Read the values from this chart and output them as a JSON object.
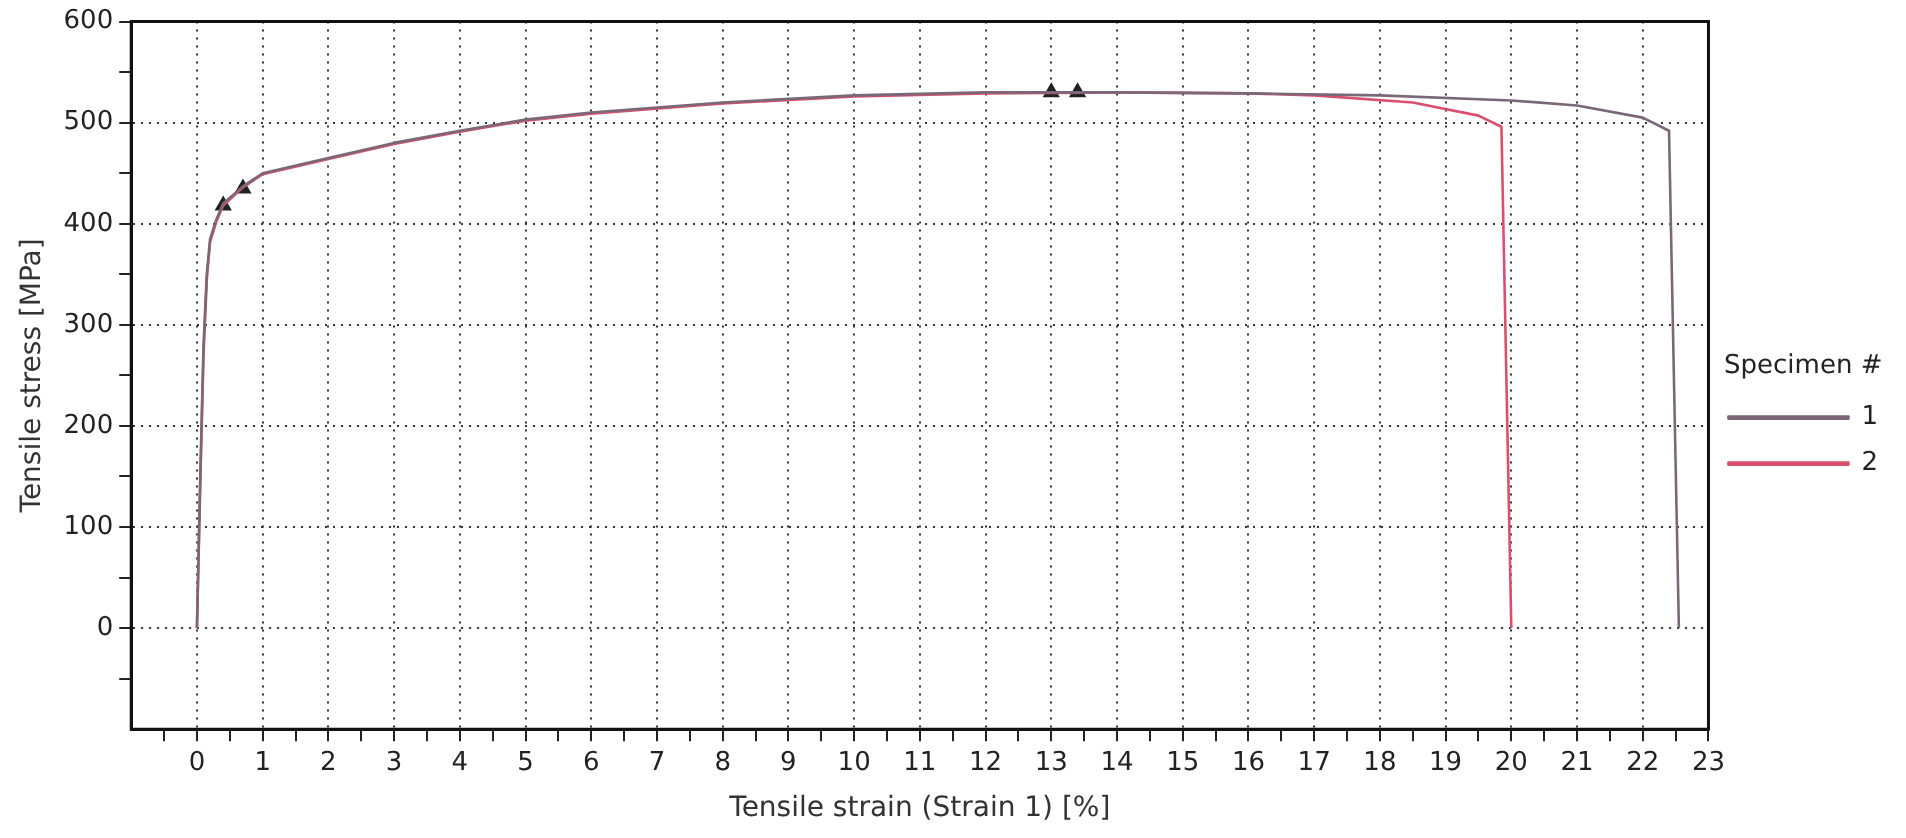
{
  "chart_data": {
    "type": "line",
    "xlabel": "Tensile strain (Strain 1) [%]",
    "ylabel": "Tensile stress [MPa]",
    "legend_title": "Specimen #",
    "xlim": [
      -1,
      23
    ],
    "ylim": [
      -100,
      600
    ],
    "xticks": [
      {
        "value": -0.5,
        "label": null
      },
      0,
      {
        "value": 0.5,
        "label": null
      },
      1,
      {
        "value": 1.5,
        "label": null
      },
      2,
      {
        "value": 2.5,
        "label": null
      },
      3,
      {
        "value": 3.5,
        "label": null
      },
      4,
      {
        "value": 4.5,
        "label": null
      },
      5,
      {
        "value": 5.5,
        "label": null
      },
      6,
      {
        "value": 6.5,
        "label": null
      },
      7,
      {
        "value": 7.5,
        "label": null
      },
      8,
      {
        "value": 8.5,
        "label": null
      },
      9,
      {
        "value": 9.5,
        "label": null
      },
      10,
      {
        "value": 10.5,
        "label": null
      },
      11,
      {
        "value": 11.5,
        "label": null
      },
      12,
      {
        "value": 12.5,
        "label": null
      },
      13,
      {
        "value": 13.5,
        "label": null
      },
      14,
      {
        "value": 14.5,
        "label": null
      },
      15,
      {
        "value": 15.5,
        "label": null
      },
      16,
      {
        "value": 16.5,
        "label": null
      },
      17,
      {
        "value": 17.5,
        "label": null
      },
      18,
      {
        "value": 18.5,
        "label": null
      },
      19,
      {
        "value": 19.5,
        "label": null
      },
      20,
      {
        "value": 20.5,
        "label": null
      },
      21,
      {
        "value": 21.5,
        "label": null
      },
      22,
      {
        "value": 22.5,
        "label": null
      },
      23
    ],
    "yticks": [
      {
        "value": -50,
        "label": null
      },
      0,
      {
        "value": 50,
        "label": null
      },
      100,
      {
        "value": 150,
        "label": null
      },
      200,
      {
        "value": 250,
        "label": null
      },
      300,
      {
        "value": 350,
        "label": null
      },
      400,
      {
        "value": 450,
        "label": null
      },
      500,
      {
        "value": 550,
        "label": null
      },
      600
    ],
    "grid": true,
    "legend": "right",
    "series": [
      {
        "name": "1",
        "color": "#7a6878",
        "marker": "none",
        "x": [
          0,
          0.05,
          0.1,
          0.15,
          0.2,
          0.3,
          0.4,
          0.7,
          1,
          2,
          3,
          4,
          5,
          6,
          8,
          10,
          12,
          14,
          16,
          18,
          20,
          21,
          22,
          22.4,
          22.55
        ],
        "values": [
          0,
          150,
          280,
          350,
          385,
          405,
          420,
          437,
          450,
          465,
          480,
          492,
          503,
          510,
          520,
          527,
          530,
          530,
          529,
          527,
          522,
          517,
          505,
          492,
          0
        ]
      },
      {
        "name": "2",
        "color": "#d9506e",
        "marker": "none",
        "x": [
          0,
          0.05,
          0.1,
          0.15,
          0.2,
          0.3,
          0.4,
          0.7,
          1,
          2,
          3,
          4,
          5,
          6,
          8,
          10,
          12,
          14,
          16,
          17,
          18.5,
          19.5,
          19.85,
          20
        ],
        "values": [
          0,
          140,
          270,
          345,
          382,
          403,
          418,
          436,
          449,
          464,
          479,
          491,
          502,
          509,
          519,
          526,
          529,
          530,
          529,
          527,
          520,
          507,
          496,
          0
        ]
      },
      {
        "type": "scatter",
        "color": "#222222",
        "marker": "triangle",
        "x": [
          0.4,
          0.7,
          13,
          13.4
        ],
        "values": [
          418,
          435,
          530,
          530
        ]
      }
    ]
  }
}
